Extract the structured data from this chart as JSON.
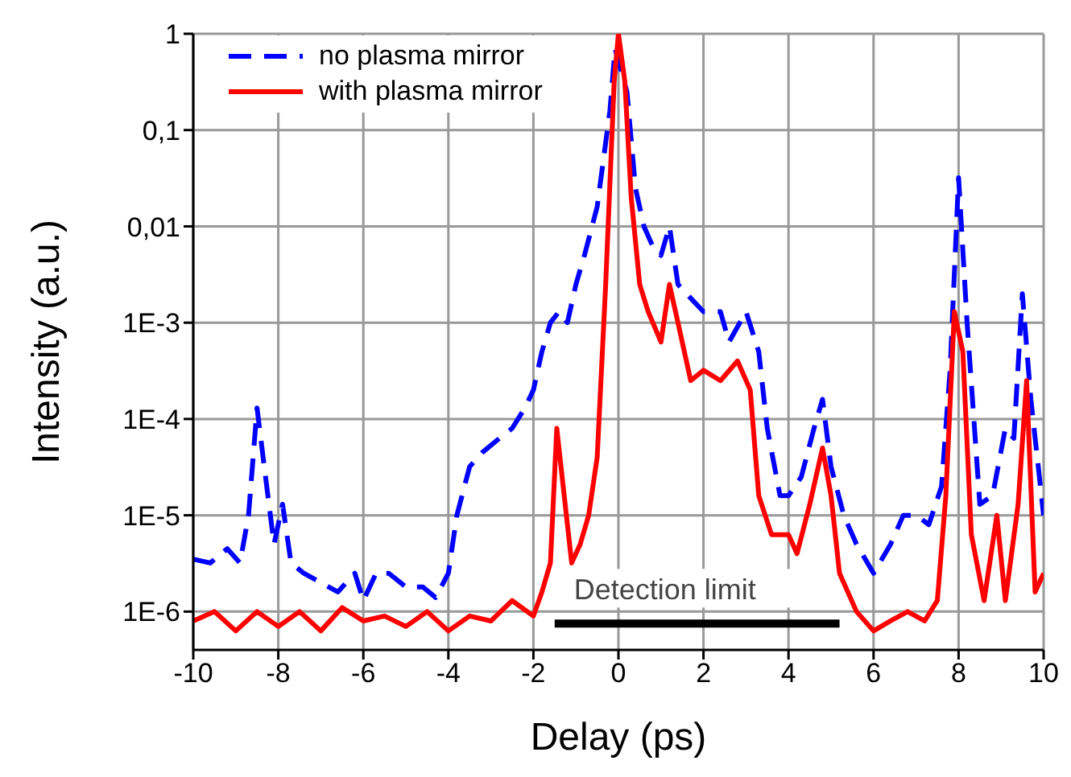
{
  "chart_data": {
    "type": "line",
    "xlabel": "Delay (ps)",
    "ylabel": "Intensity (a.u.)",
    "log": "y",
    "grid": true,
    "legend": "top left",
    "line_style": "solid",
    "marker": "none",
    "xlim": [
      -10,
      10
    ],
    "xticks": [
      -10,
      -8,
      -6,
      -4,
      -2,
      0,
      2,
      4,
      6,
      8,
      10
    ],
    "ylim": [
      4e-07,
      1
    ],
    "yticks": [
      1,
      {
        "value": 0.1,
        "label": "0,1"
      },
      {
        "value": 0.01,
        "label": "0,01"
      },
      {
        "value": 0.001,
        "label": "1E-3"
      },
      {
        "value": 0.0001,
        "label": "1E-4"
      },
      {
        "value": 1e-05,
        "label": "1E-5"
      },
      {
        "value": 1e-06,
        "label": "1E-6"
      }
    ],
    "series": [
      {
        "name": "no plasma mirror",
        "color": "#0000ff",
        "line_style": "dashed",
        "x": [
          -10,
          -9.6,
          -9.2,
          -8.9,
          -8.7,
          -8.5,
          -8.3,
          -8.1,
          -7.9,
          -7.7,
          -7.4,
          -7,
          -6.6,
          -6.2,
          -6,
          -5.7,
          -5.4,
          -5,
          -4.6,
          -4.3,
          -4,
          -3.8,
          -3.5,
          -3.2,
          -2.8,
          -2.5,
          -2.2,
          -2,
          -1.8,
          -1.6,
          -1.4,
          -1.2,
          -1,
          -0.8,
          -0.5,
          -0.2,
          -0.08,
          0.2,
          0.4,
          0.6,
          0.8,
          1,
          1.2,
          1.4,
          1.6,
          2,
          2.4,
          2.6,
          3,
          3.3,
          3.5,
          3.8,
          4,
          4.3,
          4.6,
          4.8,
          5,
          5.3,
          5.6,
          6,
          6.4,
          6.7,
          7,
          7.3,
          7.6,
          7.8,
          8,
          8.2,
          8.5,
          8.8,
          9.1,
          9.3,
          9.5,
          9.7,
          10
        ],
        "values": [
          3.5e-06,
          3.2e-06,
          4.5e-06,
          3.2e-06,
          1e-05,
          0.00013,
          2.5e-05,
          5e-06,
          1.3e-05,
          3.2e-06,
          2.5e-06,
          2e-06,
          1.6e-06,
          2.5e-06,
          1.3e-06,
          2.5e-06,
          2.5e-06,
          1.8e-06,
          1.8e-06,
          1.4e-06,
          2.5e-06,
          1e-05,
          3.2e-05,
          4.5e-05,
          6.3e-05,
          8e-05,
          0.00013,
          0.0002,
          0.0005,
          0.001,
          0.0013,
          0.001,
          0.0025,
          0.005,
          0.016,
          0.16,
          0.7,
          0.25,
          0.025,
          0.01,
          0.0063,
          0.005,
          0.01,
          0.0025,
          0.002,
          0.0013,
          0.0013,
          0.00063,
          0.0013,
          0.0005,
          8e-05,
          1.6e-05,
          1.6e-05,
          2.5e-05,
          8e-05,
          0.00016,
          3.2e-05,
          1e-05,
          5e-06,
          2.5e-06,
          5e-06,
          1e-05,
          1e-05,
          8e-06,
          2e-05,
          0.00032,
          0.032,
          0.001,
          1.3e-05,
          1.6e-05,
          8e-05,
          6.3e-05,
          0.002,
          0.00016,
          1e-05
        ]
      },
      {
        "name": "with plasma mirror",
        "color": "#ff0000",
        "x": [
          -10,
          -9.5,
          -9,
          -8.5,
          -8,
          -7.5,
          -7,
          -6.5,
          -6,
          -5.5,
          -5,
          -4.5,
          -4,
          -3.5,
          -3,
          -2.5,
          -2,
          -1.8,
          -1.6,
          -1.45,
          -1.3,
          -1.1,
          -0.9,
          -0.7,
          -0.5,
          -0.3,
          -0.1,
          0,
          0.15,
          0.3,
          0.5,
          0.7,
          1,
          1.2,
          1.4,
          1.7,
          2,
          2.4,
          2.8,
          3.1,
          3.3,
          3.6,
          4,
          4.2,
          4.5,
          4.8,
          5,
          5.2,
          5.6,
          6,
          6.4,
          6.8,
          7.2,
          7.5,
          7.7,
          7.9,
          8.1,
          8.3,
          8.6,
          8.9,
          9.1,
          9.4,
          9.6,
          9.8,
          10
        ],
        "values": [
          8e-07,
          1e-06,
          6.3e-07,
          1e-06,
          7e-07,
          1e-06,
          6.3e-07,
          1.1e-06,
          8e-07,
          9e-07,
          7e-07,
          1e-06,
          6.3e-07,
          9e-07,
          8e-07,
          1.3e-06,
          9e-07,
          1.6e-06,
          3.2e-06,
          8e-05,
          2e-05,
          3.2e-06,
          5e-06,
          1e-05,
          4e-05,
          0.0025,
          0.32,
          1,
          0.32,
          0.02,
          0.0025,
          0.0013,
          0.00063,
          0.0025,
          0.001,
          0.00025,
          0.00032,
          0.00025,
          0.0004,
          0.0002,
          1.6e-05,
          6.3e-06,
          6.3e-06,
          4e-06,
          1.3e-05,
          5e-05,
          1.6e-05,
          2.5e-06,
          1e-06,
          6.3e-07,
          8e-07,
          1e-06,
          8e-07,
          1.3e-06,
          1.6e-05,
          0.0013,
          0.0005,
          6.3e-06,
          1.3e-06,
          1e-05,
          1.3e-06,
          1.3e-05,
          0.00025,
          1.6e-06,
          2.5e-06
        ]
      },
      {
        "name": "Detection limit",
        "color": "#000000",
        "x": [
          -1.5,
          5.2
        ],
        "values": [
          7.5e-07,
          7.5e-07
        ]
      }
    ]
  }
}
